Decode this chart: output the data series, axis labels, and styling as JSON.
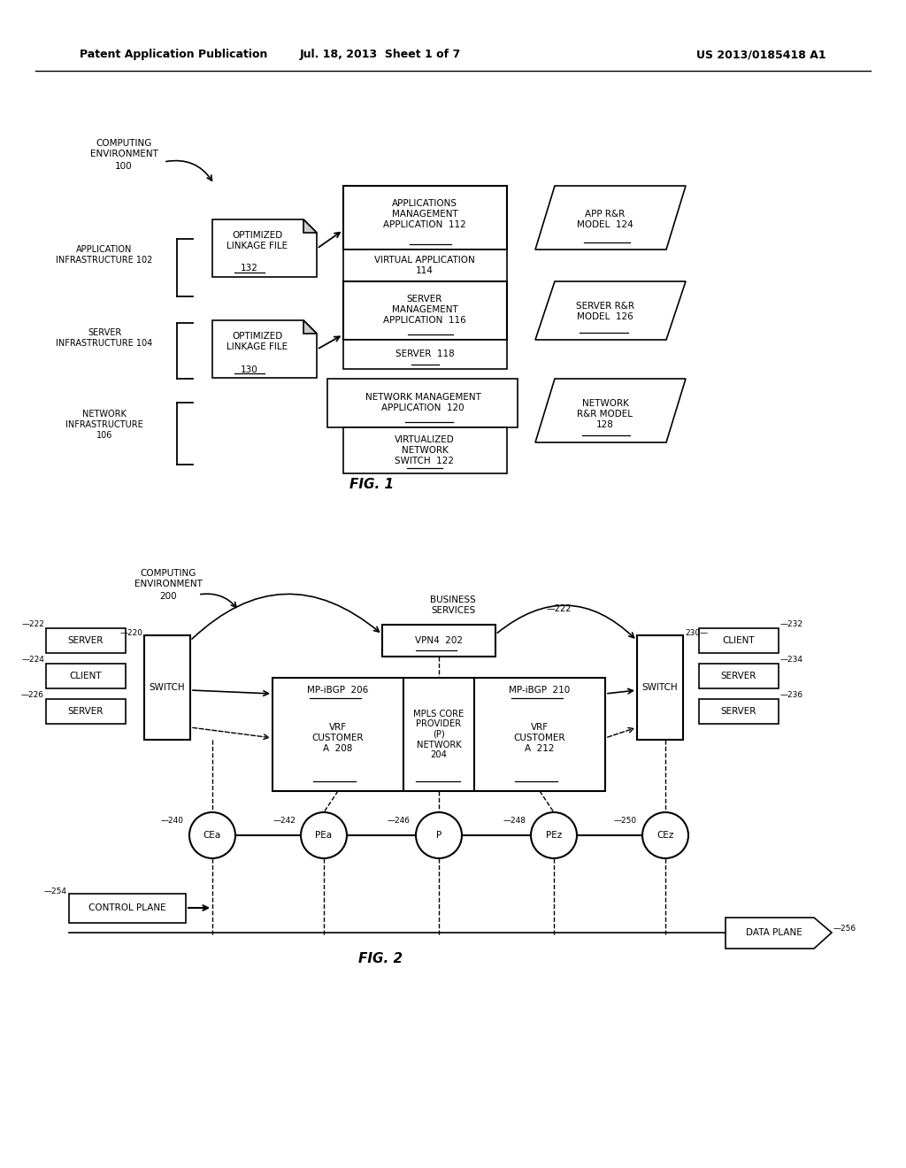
{
  "header_left": "Patent Application Publication",
  "header_mid": "Jul. 18, 2013  Sheet 1 of 7",
  "header_right": "US 2013/0185418 A1",
  "bg_color": "#ffffff",
  "line_color": "#000000",
  "fig1_label": "FIG. 1",
  "fig2_label": "FIG. 2"
}
